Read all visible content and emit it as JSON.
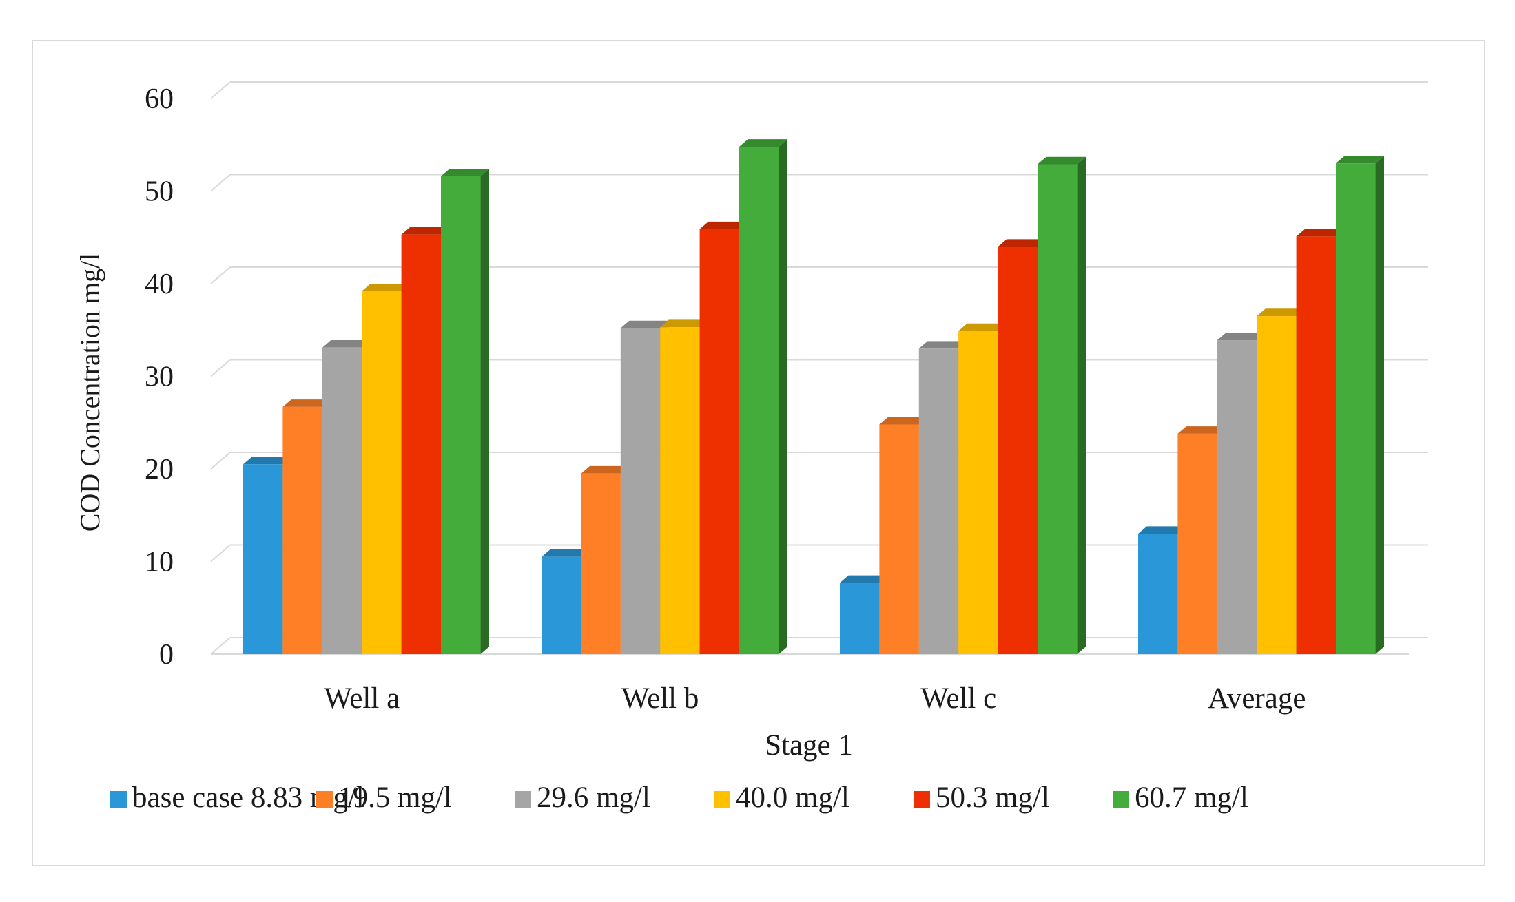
{
  "chart_data": {
    "type": "bar",
    "title": "",
    "xlabel": "Stage 1",
    "ylabel": "COD Concentration mg/l",
    "ylim": [
      0,
      60
    ],
    "yticks": [
      0,
      10,
      20,
      30,
      40,
      50,
      60
    ],
    "ytick_labels": [
      "0",
      "10",
      "20",
      "30",
      "40",
      "50",
      "60"
    ],
    "grid": true,
    "legend_position": "bottom",
    "categories": [
      "Well a",
      "Well b",
      "Well c",
      "Average"
    ],
    "series": [
      {
        "name": "base case 8.83 mg/l",
        "color": "#2997D8",
        "values": [
          20.5,
          10.5,
          7.7,
          13.0
        ]
      },
      {
        "name": "19.5 mg/l",
        "color": "#FF7F27",
        "values": [
          26.7,
          19.5,
          24.8,
          23.8
        ]
      },
      {
        "name": "29.6 mg/l",
        "color": "#A5A5A5",
        "values": [
          33.1,
          35.2,
          33.0,
          33.9
        ]
      },
      {
        "name": "40.0 mg/l",
        "color": "#FFC000",
        "values": [
          39.2,
          35.3,
          34.9,
          36.5
        ]
      },
      {
        "name": "50.3 mg/l",
        "color": "#EE3000",
        "values": [
          45.3,
          45.9,
          44.0,
          45.1
        ]
      },
      {
        "name": "60.7 mg/l",
        "color": "#43AC3A",
        "values": [
          51.6,
          54.8,
          52.9,
          53.0
        ]
      }
    ]
  }
}
